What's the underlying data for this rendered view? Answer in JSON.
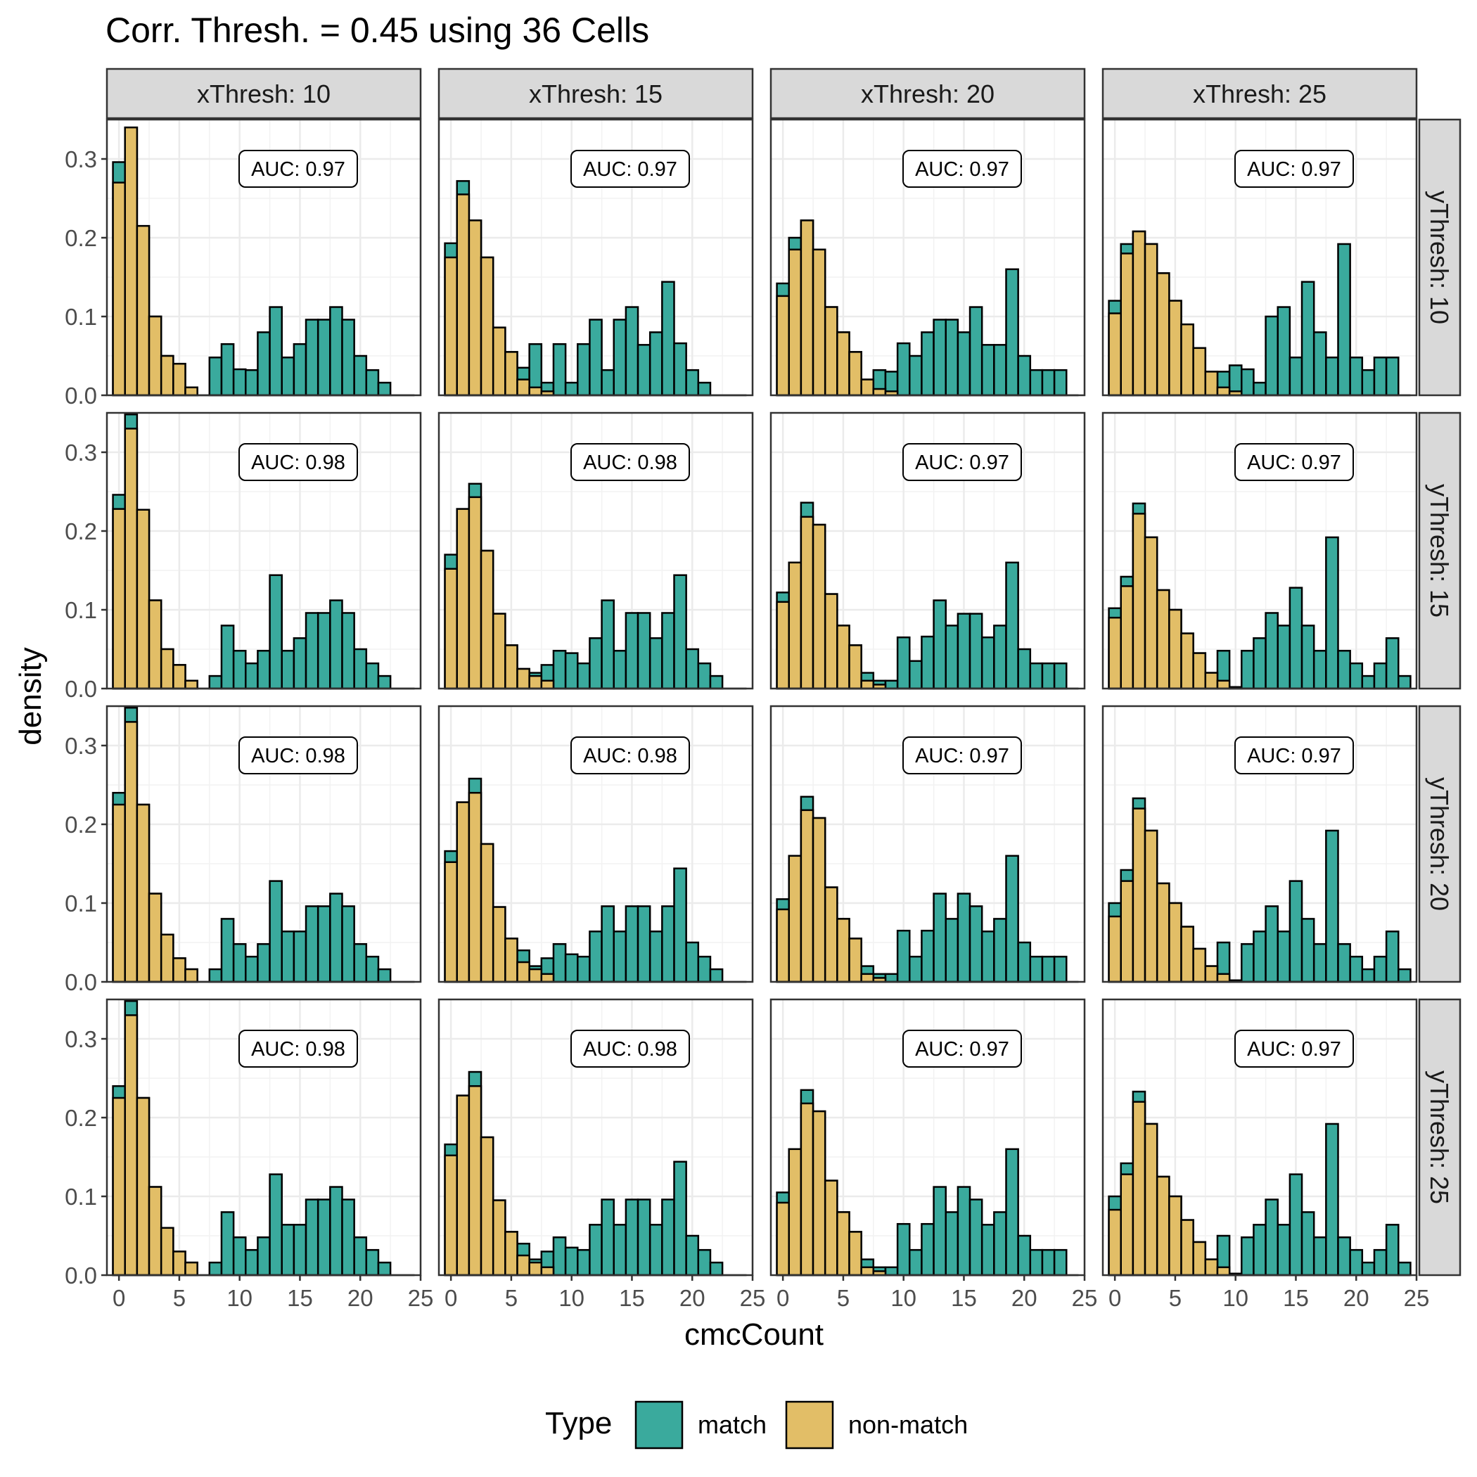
{
  "chart_data": {
    "type": "bar",
    "title": "Corr. Thresh. = 0.45 using 36 Cells",
    "xlabel": "cmcCount",
    "ylabel": "density",
    "xlim": [
      -1,
      25
    ],
    "ylim": [
      0,
      0.35
    ],
    "xticks": [
      "0",
      "5",
      "10",
      "15",
      "20",
      "25"
    ],
    "yticks": [
      "0.0",
      "0.1",
      "0.2",
      "0.3"
    ],
    "grid": true,
    "col_label_prefix": "xThresh: ",
    "row_label_prefix": "yThresh: ",
    "col_values": [
      "10",
      "15",
      "20",
      "25"
    ],
    "row_values": [
      "10",
      "15",
      "20",
      "25"
    ],
    "legend": {
      "title": "Type",
      "position": "bottom",
      "items": [
        {
          "label": "match",
          "color": "#3aaa9d"
        },
        {
          "label": "non-match",
          "color": "#e2be67"
        }
      ]
    },
    "colors": {
      "match": "#3aaa9d",
      "non_match": "#e2be67",
      "strip": "#d9d9d9",
      "outline": "#000000",
      "grid": "#ebebeb"
    },
    "bins_x": [
      0,
      1,
      2,
      3,
      4,
      5,
      6,
      7,
      8,
      9,
      10,
      11,
      12,
      13,
      14,
      15,
      16,
      17,
      18,
      19,
      20,
      21,
      22,
      23,
      24
    ],
    "panels": [
      {
        "row": "10",
        "col": "10",
        "auc": "AUC: 0.97",
        "match": [
          0.296,
          0.34,
          0.215,
          0.1,
          0.05,
          0.04,
          0.01,
          0,
          0.048,
          0.065,
          0.033,
          0.032,
          0.08,
          0.112,
          0.048,
          0.065,
          0.096,
          0.096,
          0.112,
          0.096,
          0.05,
          0.032,
          0.016,
          0,
          0
        ],
        "nonmatch": [
          0.27,
          0.34,
          0.215,
          0.1,
          0.05,
          0.04,
          0.01,
          0,
          0,
          0,
          0,
          0,
          0,
          0,
          0,
          0,
          0,
          0,
          0,
          0,
          0,
          0,
          0,
          0,
          0
        ]
      },
      {
        "row": "10",
        "col": "15",
        "auc": "AUC: 0.97",
        "match": [
          0.193,
          0.272,
          0.222,
          0.175,
          0.086,
          0.055,
          0.035,
          0.065,
          0.016,
          0.065,
          0.016,
          0.065,
          0.096,
          0.032,
          0.096,
          0.112,
          0.064,
          0.08,
          0.144,
          0.066,
          0.032,
          0.016,
          0,
          0,
          0
        ],
        "nonmatch": [
          0.175,
          0.255,
          0.222,
          0.175,
          0.086,
          0.055,
          0.02,
          0.01,
          0.005,
          0,
          0,
          0,
          0,
          0,
          0,
          0,
          0,
          0,
          0,
          0,
          0,
          0,
          0,
          0,
          0
        ]
      },
      {
        "row": "10",
        "col": "20",
        "auc": "AUC: 0.97",
        "match": [
          0.142,
          0.2,
          0.222,
          0.185,
          0.112,
          0.08,
          0.055,
          0.02,
          0.032,
          0.03,
          0.066,
          0.05,
          0.08,
          0.096,
          0.096,
          0.08,
          0.112,
          0.064,
          0.064,
          0.16,
          0.05,
          0.032,
          0.032,
          0.032,
          0
        ],
        "nonmatch": [
          0.126,
          0.185,
          0.222,
          0.185,
          0.112,
          0.08,
          0.055,
          0.02,
          0.008,
          0.005,
          0,
          0,
          0,
          0,
          0,
          0,
          0,
          0,
          0,
          0,
          0,
          0,
          0,
          0,
          0
        ]
      },
      {
        "row": "10",
        "col": "25",
        "auc": "AUC: 0.97",
        "match": [
          0.12,
          0.192,
          0.208,
          0.192,
          0.155,
          0.12,
          0.09,
          0.06,
          0.03,
          0.03,
          0.038,
          0.033,
          0.016,
          0.1,
          0.112,
          0.048,
          0.144,
          0.08,
          0.048,
          0.192,
          0.048,
          0.032,
          0.048,
          0.048,
          0
        ],
        "nonmatch": [
          0.104,
          0.18,
          0.208,
          0.192,
          0.155,
          0.12,
          0.09,
          0.06,
          0.03,
          0.01,
          0.005,
          0,
          0,
          0,
          0,
          0,
          0,
          0,
          0,
          0,
          0,
          0,
          0,
          0,
          0
        ]
      },
      {
        "row": "15",
        "col": "10",
        "auc": "AUC: 0.98",
        "match": [
          0.246,
          0.348,
          0.227,
          0.112,
          0.05,
          0.03,
          0.01,
          0,
          0.016,
          0.08,
          0.048,
          0.032,
          0.048,
          0.144,
          0.048,
          0.064,
          0.096,
          0.096,
          0.112,
          0.096,
          0.05,
          0.032,
          0.016,
          0,
          0
        ],
        "nonmatch": [
          0.228,
          0.33,
          0.227,
          0.112,
          0.05,
          0.03,
          0.01,
          0,
          0,
          0,
          0,
          0,
          0,
          0,
          0,
          0,
          0,
          0,
          0,
          0,
          0,
          0,
          0,
          0,
          0
        ]
      },
      {
        "row": "15",
        "col": "15",
        "auc": "AUC: 0.98",
        "match": [
          0.17,
          0.228,
          0.26,
          0.175,
          0.095,
          0.055,
          0.025,
          0.02,
          0.03,
          0.048,
          0.045,
          0.032,
          0.064,
          0.112,
          0.048,
          0.096,
          0.096,
          0.064,
          0.096,
          0.144,
          0.05,
          0.032,
          0.016,
          0,
          0
        ],
        "nonmatch": [
          0.152,
          0.228,
          0.243,
          0.175,
          0.095,
          0.055,
          0.025,
          0.016,
          0.01,
          0,
          0,
          0,
          0,
          0,
          0,
          0,
          0,
          0,
          0,
          0,
          0,
          0,
          0,
          0,
          0
        ]
      },
      {
        "row": "15",
        "col": "20",
        "auc": "AUC: 0.97",
        "match": [
          0.122,
          0.16,
          0.236,
          0.208,
          0.12,
          0.08,
          0.055,
          0.02,
          0.01,
          0.01,
          0.065,
          0.035,
          0.066,
          0.112,
          0.08,
          0.095,
          0.095,
          0.065,
          0.08,
          0.16,
          0.05,
          0.032,
          0.032,
          0.032,
          0
        ],
        "nonmatch": [
          0.11,
          0.16,
          0.218,
          0.208,
          0.12,
          0.08,
          0.055,
          0.01,
          0.005,
          0,
          0,
          0,
          0,
          0,
          0,
          0,
          0,
          0,
          0,
          0,
          0,
          0,
          0,
          0,
          0
        ]
      },
      {
        "row": "15",
        "col": "25",
        "auc": "AUC: 0.97",
        "match": [
          0.102,
          0.142,
          0.235,
          0.192,
          0.125,
          0.1,
          0.07,
          0.045,
          0.02,
          0.048,
          0.002,
          0.048,
          0.064,
          0.096,
          0.08,
          0.128,
          0.08,
          0.048,
          0.192,
          0.048,
          0.032,
          0.016,
          0.032,
          0.064,
          0.016
        ],
        "nonmatch": [
          0.09,
          0.13,
          0.222,
          0.192,
          0.125,
          0.1,
          0.07,
          0.045,
          0.02,
          0.01,
          0,
          0,
          0,
          0,
          0,
          0,
          0,
          0,
          0,
          0,
          0,
          0,
          0,
          0,
          0
        ]
      },
      {
        "row": "20",
        "col": "10",
        "auc": "AUC: 0.98",
        "match": [
          0.24,
          0.348,
          0.225,
          0.112,
          0.06,
          0.03,
          0.016,
          0,
          0.016,
          0.08,
          0.048,
          0.032,
          0.048,
          0.128,
          0.064,
          0.064,
          0.096,
          0.096,
          0.112,
          0.096,
          0.048,
          0.032,
          0.016,
          0,
          0
        ],
        "nonmatch": [
          0.225,
          0.33,
          0.225,
          0.112,
          0.06,
          0.03,
          0.016,
          0,
          0,
          0,
          0,
          0,
          0,
          0,
          0,
          0,
          0,
          0,
          0,
          0,
          0,
          0,
          0,
          0,
          0
        ]
      },
      {
        "row": "20",
        "col": "15",
        "auc": "AUC: 0.98",
        "match": [
          0.166,
          0.228,
          0.258,
          0.175,
          0.095,
          0.055,
          0.04,
          0.02,
          0.03,
          0.048,
          0.035,
          0.032,
          0.064,
          0.096,
          0.064,
          0.096,
          0.096,
          0.064,
          0.096,
          0.144,
          0.05,
          0.032,
          0.016,
          0,
          0
        ],
        "nonmatch": [
          0.152,
          0.228,
          0.24,
          0.175,
          0.095,
          0.055,
          0.025,
          0.016,
          0.01,
          0,
          0,
          0,
          0,
          0,
          0,
          0,
          0,
          0,
          0,
          0,
          0,
          0,
          0,
          0,
          0
        ]
      },
      {
        "row": "20",
        "col": "20",
        "auc": "AUC: 0.97",
        "match": [
          0.105,
          0.16,
          0.235,
          0.208,
          0.12,
          0.08,
          0.055,
          0.02,
          0.01,
          0.01,
          0.065,
          0.032,
          0.065,
          0.112,
          0.08,
          0.112,
          0.096,
          0.064,
          0.08,
          0.16,
          0.05,
          0.032,
          0.032,
          0.032,
          0
        ],
        "nonmatch": [
          0.092,
          0.16,
          0.218,
          0.208,
          0.12,
          0.08,
          0.055,
          0.01,
          0.005,
          0,
          0,
          0,
          0,
          0,
          0,
          0,
          0,
          0,
          0,
          0,
          0,
          0,
          0,
          0,
          0
        ]
      },
      {
        "row": "20",
        "col": "25",
        "auc": "AUC: 0.97",
        "match": [
          0.1,
          0.142,
          0.233,
          0.192,
          0.125,
          0.1,
          0.07,
          0.042,
          0.02,
          0.05,
          0.002,
          0.048,
          0.064,
          0.096,
          0.064,
          0.128,
          0.08,
          0.048,
          0.192,
          0.048,
          0.032,
          0.016,
          0.032,
          0.064,
          0.016
        ],
        "nonmatch": [
          0.083,
          0.128,
          0.22,
          0.192,
          0.125,
          0.1,
          0.07,
          0.042,
          0.02,
          0.01,
          0,
          0,
          0,
          0,
          0,
          0,
          0,
          0,
          0,
          0,
          0,
          0,
          0,
          0,
          0
        ]
      },
      {
        "row": "25",
        "col": "10",
        "auc": "AUC: 0.98",
        "match": [
          0.24,
          0.348,
          0.225,
          0.112,
          0.06,
          0.03,
          0.016,
          0,
          0.016,
          0.08,
          0.048,
          0.032,
          0.048,
          0.128,
          0.064,
          0.064,
          0.096,
          0.096,
          0.112,
          0.096,
          0.048,
          0.032,
          0.016,
          0,
          0
        ],
        "nonmatch": [
          0.225,
          0.33,
          0.225,
          0.112,
          0.06,
          0.03,
          0.016,
          0,
          0,
          0,
          0,
          0,
          0,
          0,
          0,
          0,
          0,
          0,
          0,
          0,
          0,
          0,
          0,
          0,
          0
        ]
      },
      {
        "row": "25",
        "col": "15",
        "auc": "AUC: 0.98",
        "match": [
          0.166,
          0.228,
          0.258,
          0.175,
          0.095,
          0.055,
          0.04,
          0.02,
          0.03,
          0.048,
          0.035,
          0.032,
          0.064,
          0.096,
          0.064,
          0.096,
          0.096,
          0.064,
          0.096,
          0.144,
          0.05,
          0.032,
          0.016,
          0,
          0
        ],
        "nonmatch": [
          0.152,
          0.228,
          0.24,
          0.175,
          0.095,
          0.055,
          0.025,
          0.016,
          0.01,
          0,
          0,
          0,
          0,
          0,
          0,
          0,
          0,
          0,
          0,
          0,
          0,
          0,
          0,
          0,
          0
        ]
      },
      {
        "row": "25",
        "col": "20",
        "auc": "AUC: 0.97",
        "match": [
          0.105,
          0.16,
          0.235,
          0.208,
          0.12,
          0.08,
          0.055,
          0.02,
          0.01,
          0.01,
          0.065,
          0.032,
          0.065,
          0.112,
          0.08,
          0.112,
          0.096,
          0.064,
          0.08,
          0.16,
          0.05,
          0.032,
          0.032,
          0.032,
          0
        ],
        "nonmatch": [
          0.092,
          0.16,
          0.218,
          0.208,
          0.12,
          0.08,
          0.055,
          0.01,
          0.005,
          0,
          0,
          0,
          0,
          0,
          0,
          0,
          0,
          0,
          0,
          0,
          0,
          0,
          0,
          0,
          0
        ]
      },
      {
        "row": "25",
        "col": "25",
        "auc": "AUC: 0.97",
        "match": [
          0.1,
          0.142,
          0.233,
          0.192,
          0.125,
          0.1,
          0.07,
          0.042,
          0.02,
          0.05,
          0.002,
          0.048,
          0.064,
          0.096,
          0.064,
          0.128,
          0.08,
          0.048,
          0.192,
          0.048,
          0.032,
          0.016,
          0.032,
          0.064,
          0.016
        ],
        "nonmatch": [
          0.083,
          0.128,
          0.22,
          0.192,
          0.125,
          0.1,
          0.07,
          0.042,
          0.02,
          0.01,
          0,
          0,
          0,
          0,
          0,
          0,
          0,
          0,
          0,
          0,
          0,
          0,
          0,
          0,
          0
        ]
      }
    ]
  }
}
